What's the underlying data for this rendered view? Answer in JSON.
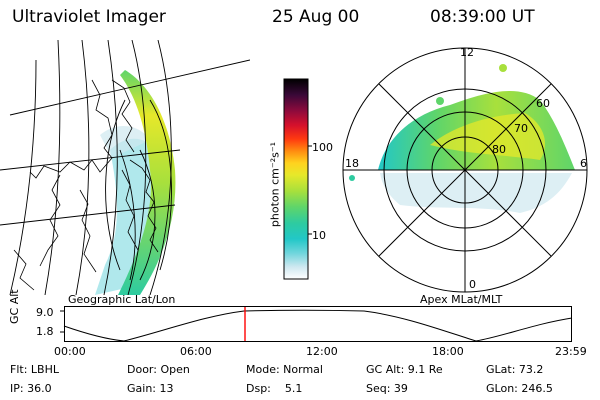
{
  "header": {
    "title": "Ultraviolet Imager",
    "date": "25 Aug 00",
    "time": "08:39:00 UT"
  },
  "panels": {
    "geo_label": "Geographic Lat/Lon",
    "polar_label": "Apex MLat/MLT",
    "polar_mlt": {
      "top": "12",
      "right": "6",
      "bottom": "0",
      "left": "18"
    },
    "polar_lat": [
      "60",
      "70",
      "80"
    ]
  },
  "colorbar": {
    "unit_label": "photon cm⁻²s⁻¹",
    "tick_high": "100",
    "tick_low": "10",
    "colors": [
      "#ffffff",
      "#cfe8f0",
      "#6fd5dc",
      "#22c7c7",
      "#2ecba0",
      "#5fd56a",
      "#a8e03c",
      "#e6e82a",
      "#ffd21e",
      "#ff8c10",
      "#ff3a10",
      "#d4102c",
      "#8e0a3c",
      "#3a0838",
      "#000000"
    ]
  },
  "altitude_plot": {
    "ylabel": "GC Alt",
    "ytick_top": "9.0",
    "ytick_bottom": "1.8",
    "xticks": [
      "00:00",
      "06:00",
      "12:00",
      "18:00",
      "23:59"
    ]
  },
  "status": {
    "flt": "Flt: LBHL",
    "ip": "IP: 36.0",
    "door": "Door: Open",
    "gain": "Gain: 13",
    "mode": "Mode: Normal",
    "dsp": "Dsp:    5.1",
    "gc_alt": "GC Alt: 9.1 Re",
    "seq": "Seq: 39",
    "glat": "GLat: 73.2",
    "glon": "GLon: 246.5"
  }
}
